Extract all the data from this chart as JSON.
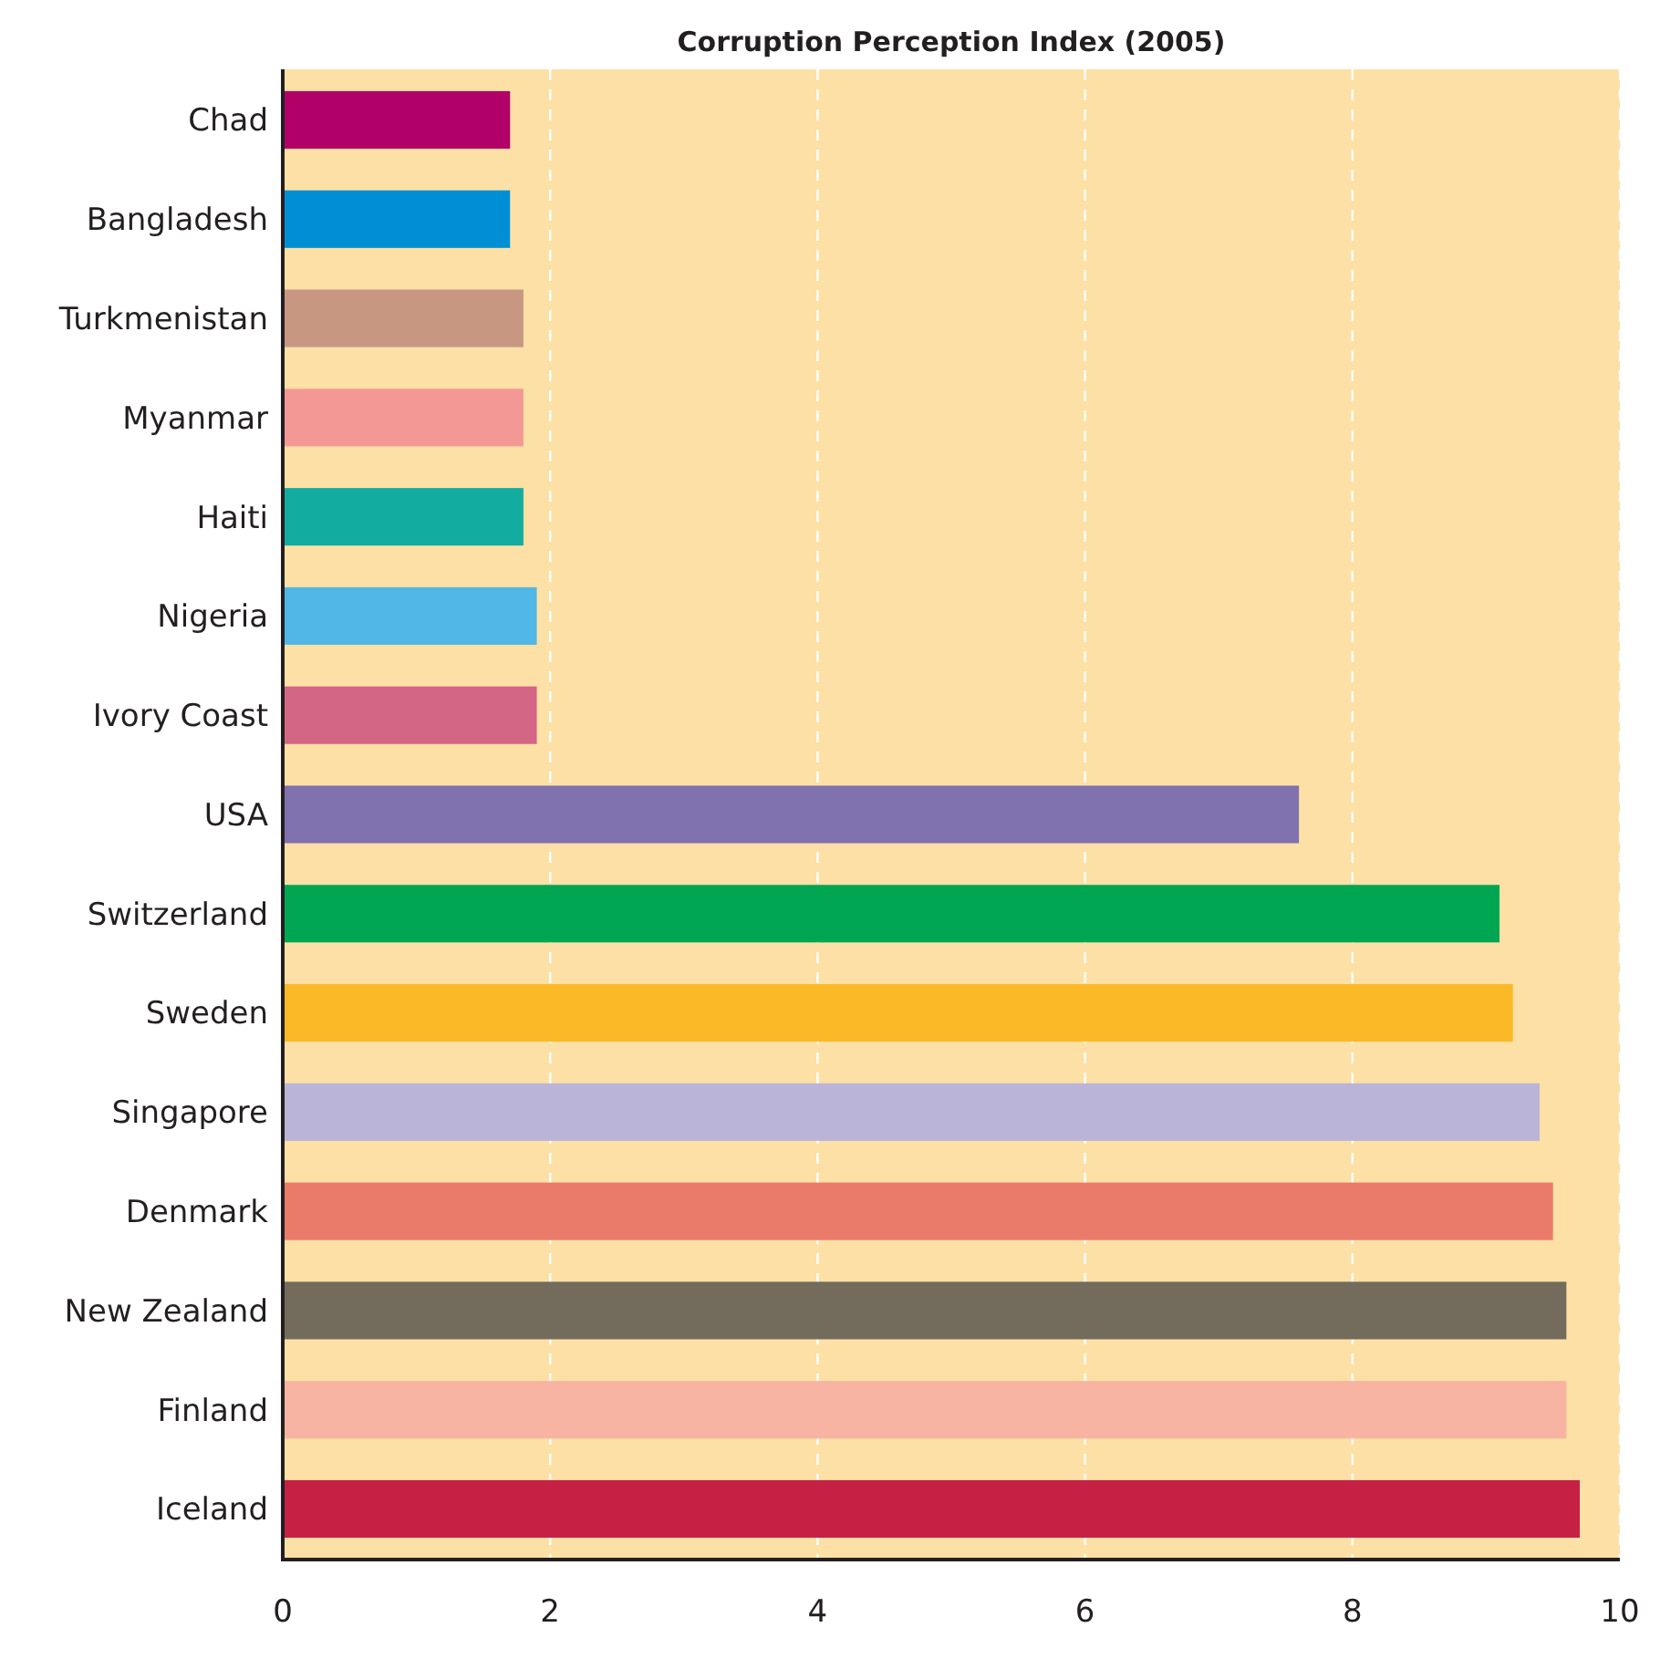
{
  "chart_data": {
    "type": "bar",
    "orientation": "horizontal",
    "title": "Corruption Perception Index (2005)",
    "categories": [
      "Chad",
      "Bangladesh",
      "Turkmenistan",
      "Myanmar",
      "Haiti",
      "Nigeria",
      "Ivory Coast",
      "USA",
      "Switzerland",
      "Sweden",
      "Singapore",
      "Denmark",
      "New Zealand",
      "Finland",
      "Iceland"
    ],
    "values": [
      1.7,
      1.7,
      1.8,
      1.8,
      1.8,
      1.9,
      1.9,
      7.6,
      9.1,
      9.2,
      9.4,
      9.5,
      9.6,
      9.6,
      9.7
    ],
    "colors": [
      "#b10068",
      "#008fd5",
      "#c79782",
      "#f49895",
      "#13aca0",
      "#51b7e6",
      "#d36685",
      "#8071af",
      "#00a651",
      "#fbb927",
      "#bab4d9",
      "#ea7b6b",
      "#736b5c",
      "#f7b4a2",
      "#c62045"
    ],
    "xlim": [
      0,
      10
    ],
    "xticks": [
      0,
      2,
      4,
      6,
      8,
      10
    ],
    "grid": "x"
  }
}
